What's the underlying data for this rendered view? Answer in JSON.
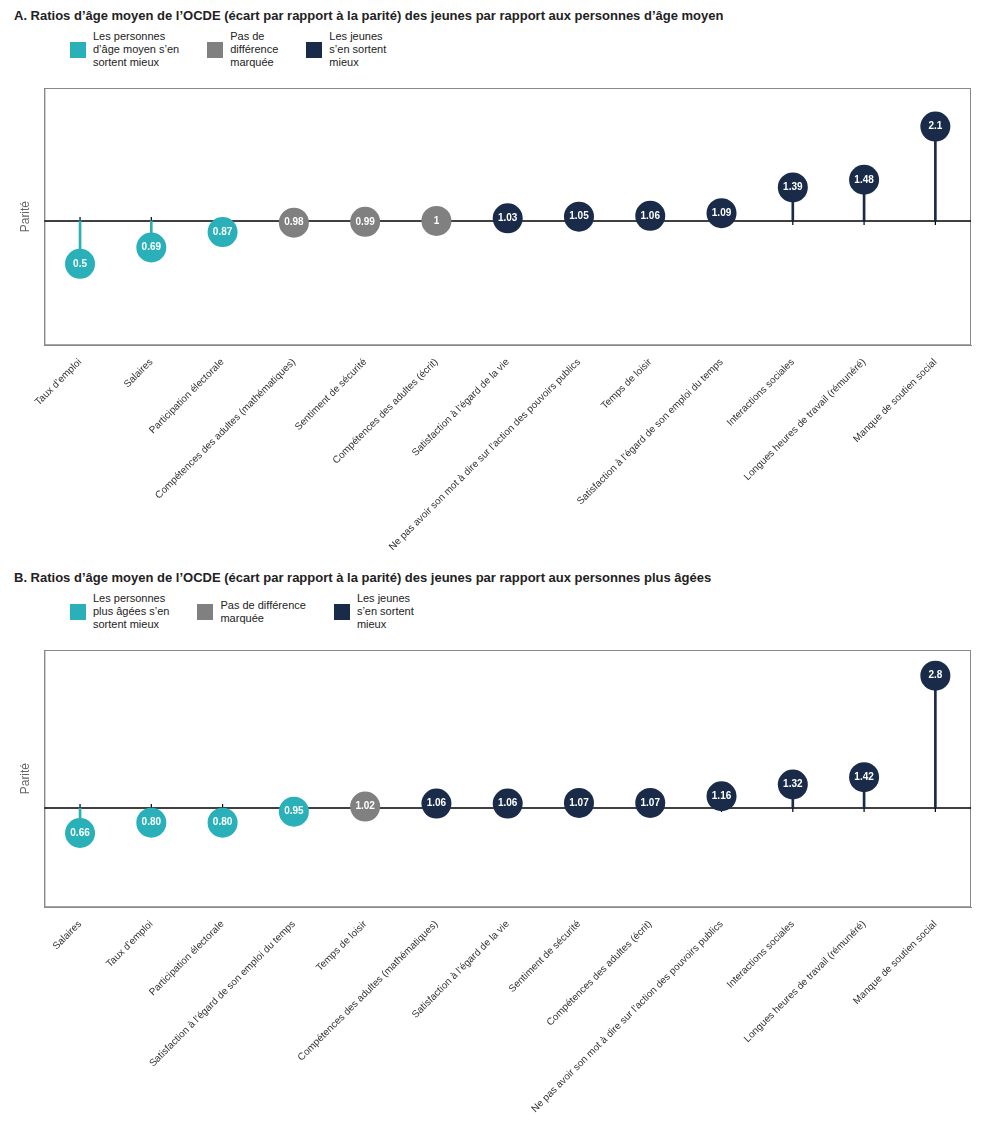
{
  "chart_data": [
    {
      "type": "lollipop",
      "title": "A. Ratios d’âge moyen de l’OCDE (écart par rapport à la parité) des jeunes par rapport aux personnes d’âge moyen",
      "ylabel": "Parité",
      "categories": [
        "Taux d’emploi",
        "Salaires",
        "Participation électorale",
        "Compétences des adultes (mathématiques)",
        "Sentiment de sécurité",
        "Compétences des adultes (écrit)",
        "Satisfaction à l’égard de la vie",
        "Ne pas avoir son mot à dire sur l’action des pouvoirs publics",
        "Temps de loisir",
        "Satisfaction à l’égard de son emploi du temps",
        "Interactions sociales",
        "Longues heures de travail (rémunéré)",
        "Manque de soutien social"
      ],
      "values": [
        0.5,
        0.69,
        0.87,
        0.98,
        0.99,
        1.0,
        1.03,
        1.05,
        1.06,
        1.09,
        1.39,
        1.48,
        2.1
      ],
      "value_labels": [
        "0.5",
        "0.69",
        "0.87",
        "0.98",
        "0.99",
        "1",
        "1.03",
        "1.05",
        "1.06",
        "1.09",
        "1.39",
        "1.48",
        "2.1"
      ],
      "colors": [
        "#2ab0b8",
        "#2ab0b8",
        "#2ab0b8",
        "#808080",
        "#808080",
        "#808080",
        "#1a2b4a",
        "#1a2b4a",
        "#1a2b4a",
        "#1a2b4a",
        "#1a2b4a",
        "#1a2b4a",
        "#1a2b4a"
      ],
      "legend_items": [
        {
          "name": "Les personnes\nd’âge moyen s’en\nsortent mieux",
          "color": "#2ab0b8"
        },
        {
          "name": "Pas de\ndifférence\nmarquée",
          "color": "#808080"
        },
        {
          "name": "Les jeunes\ns’en sortent\nmieux",
          "color": "#1a2b4a"
        }
      ],
      "legend": "upper left",
      "parity": 1.0,
      "ylim": [
        -0.45,
        2.55
      ],
      "yticks": [],
      "tick_labels": "x",
      "grid": false,
      "data_labels": true
    },
    {
      "type": "lollipop",
      "title": "B. Ratios d’âge moyen de l’OCDE (écart par rapport à la parité) des jeunes par rapport aux personnes plus âgées",
      "ylabel": "Parité",
      "categories": [
        "Salaires",
        "Taux d’emploi",
        "Participation électorale",
        "Satisfaction à l’égard de son emploi du temps",
        "Temps de loisir",
        "Compétences des adultes (mathématiques)",
        "Satisfaction à l’égard de la vie",
        "Sentiment de sécurité",
        "Compétences des adultes (écrit)",
        "Ne pas avoir son mot à dire sur l’action des pouvoirs publics",
        "Interactions sociales",
        "Longues heures de travail (rémunéré)",
        "Manque de soutien social"
      ],
      "values": [
        0.66,
        0.8,
        0.8,
        0.95,
        1.02,
        1.06,
        1.06,
        1.07,
        1.07,
        1.16,
        1.32,
        1.42,
        2.8
      ],
      "value_labels": [
        "0.66",
        "0.80",
        "0.80",
        "0.95",
        "1.02",
        "1.06",
        "1.06",
        "1.07",
        "1.07",
        "1.16",
        "1.32",
        "1.42",
        "2.8"
      ],
      "colors": [
        "#2ab0b8",
        "#2ab0b8",
        "#2ab0b8",
        "#2ab0b8",
        "#808080",
        "#1a2b4a",
        "#1a2b4a",
        "#1a2b4a",
        "#1a2b4a",
        "#1a2b4a",
        "#1a2b4a",
        "#1a2b4a",
        "#1a2b4a"
      ],
      "legend_items": [
        {
          "name": "Les personnes\nplus âgées s’en\nsortent mieux",
          "color": "#2ab0b8"
        },
        {
          "name": "Pas de différence\nmarquée",
          "color": "#808080"
        },
        {
          "name": "Les jeunes\ns’en sortent\nmieux",
          "color": "#1a2b4a"
        }
      ],
      "legend": "upper left",
      "parity": 1.0,
      "ylim": [
        -0.35,
        3.15
      ],
      "yticks": [],
      "tick_labels": "x",
      "grid": false,
      "data_labels": true
    }
  ]
}
